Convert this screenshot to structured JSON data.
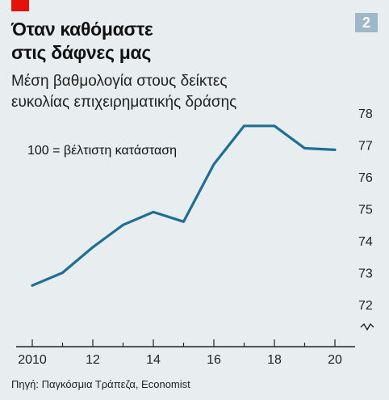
{
  "header": {
    "badge": "2",
    "title_line1": "Όταν καθόμαστε",
    "title_line2": "στις δάφνες μας",
    "subtitle_line1": "Μέση βαθμολογία στους δείκτες",
    "subtitle_line2": "ευκολίας επιχειρηματικής δράσης"
  },
  "source": "Πηγή: Παγκόσμια Τράπεζα, Economist",
  "chart_data": {
    "type": "line",
    "title": "Όταν καθόμαστε στις δάφνες μας",
    "subtitle": "Μέση βαθμολογία στους δείκτες ευκολίας επιχειρηματικής δράσης",
    "annotation": "100 = βέλτιστη κατάσταση",
    "x": [
      2010,
      2011,
      2012,
      2013,
      2014,
      2015,
      2016,
      2017,
      2018,
      2019,
      2020
    ],
    "series": [
      {
        "values": [
          72.6,
          73.0,
          73.8,
          74.5,
          74.9,
          74.6,
          76.4,
          77.6,
          77.6,
          76.9,
          76.85
        ]
      }
    ],
    "x_ticks": [
      2010,
      2012,
      2014,
      2016,
      2018,
      2020
    ],
    "x_tick_labels": [
      "2010",
      "12",
      "14",
      "16",
      "18",
      "20"
    ],
    "y_ticks": [
      72,
      73,
      74,
      75,
      76,
      77,
      78
    ],
    "y_tick_labels": [
      "72",
      "73",
      "74",
      "75",
      "76",
      "77",
      "78"
    ],
    "ylim": [
      72,
      78
    ],
    "xlim": [
      2010,
      2020
    ],
    "axis_break": true,
    "grid": false,
    "line_color": "#1f6f95",
    "axis_color": "#222222"
  }
}
